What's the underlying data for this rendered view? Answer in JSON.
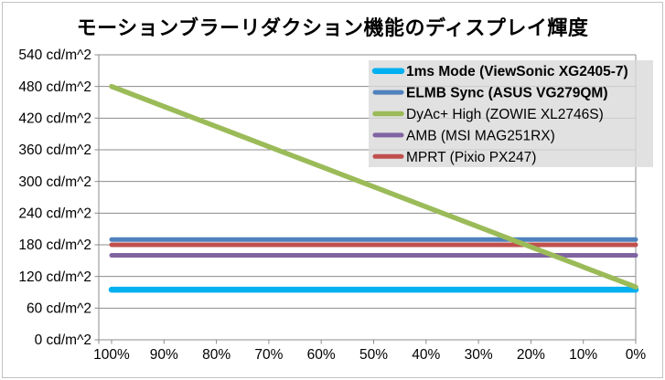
{
  "title": "モーションブラーリダクション機能のディスプレイ輝度",
  "chart_data": {
    "type": "line",
    "title": "モーションブラーリダクション機能のディスプレイ輝度",
    "xlabel": "",
    "ylabel": "cd/m^2",
    "x_axis": {
      "categories": [
        "100%",
        "90%",
        "80%",
        "70%",
        "60%",
        "50%",
        "40%",
        "30%",
        "20%",
        "10%",
        "0%"
      ],
      "direction": "100-percent-left-to-0-percent-right"
    },
    "y_axis": {
      "min": 0,
      "max": 540,
      "step": 60,
      "unit_suffix": " cd/m^2",
      "tick_labels_bottom_to_top": [
        "0 cd/m^2",
        "60 cd/m^2",
        "120 cd/m^2",
        "180 cd/m^2",
        "240 cd/m^2",
        "300 cd/m^2",
        "360 cd/m^2",
        "420 cd/m^2",
        "480 cd/m^2",
        "540 cd/m^2"
      ]
    },
    "grid": true,
    "legend": {
      "position": "top-right",
      "background": "#D9D9D9"
    },
    "series": [
      {
        "name": "1ms Mode (ViewSonic XG2405-7)",
        "slug": "1ms-mode-viewsonic",
        "color": "#00B0F0",
        "line_width": 6.5,
        "legend_bold": true,
        "values": [
          95,
          95,
          95,
          95,
          95,
          95,
          95,
          95,
          95,
          95,
          95
        ]
      },
      {
        "name": "ELMB Sync (ASUS VG279QM)",
        "slug": "elmb-sync-asus",
        "color": "#4F81BD",
        "line_width": 5,
        "legend_bold": true,
        "values": [
          190,
          190,
          190,
          190,
          190,
          190,
          190,
          190,
          190,
          190,
          190
        ]
      },
      {
        "name": "DyAc+ High (ZOWIE XL2746S)",
        "slug": "dyac-high-zowie",
        "color": "#9BBB59",
        "line_width": 5.5,
        "legend_bold": false,
        "values": [
          480,
          442,
          404,
          366,
          328,
          290,
          252,
          214,
          176,
          138,
          100
        ]
      },
      {
        "name": "AMB (MSI MAG251RX)",
        "slug": "amb-msi",
        "color": "#8064A2",
        "line_width": 5,
        "legend_bold": false,
        "values": [
          160,
          160,
          160,
          160,
          160,
          160,
          160,
          160,
          160,
          160,
          160
        ]
      },
      {
        "name": "MPRT (Pixio PX247)",
        "slug": "mprt-pixio",
        "color": "#C0504D",
        "line_width": 5,
        "legend_bold": false,
        "values": [
          180,
          180,
          180,
          180,
          180,
          180,
          180,
          180,
          180,
          180,
          180
        ]
      }
    ],
    "draw_order": [
      1,
      4,
      3,
      0,
      2
    ]
  },
  "colors": {
    "background": "#FFFFFF",
    "outer_border": "#C3C3C3",
    "gridline": "#8C8C8C",
    "axis": "#8C8C8C",
    "text": "#000000",
    "legend_background": "#D9D9D9"
  }
}
